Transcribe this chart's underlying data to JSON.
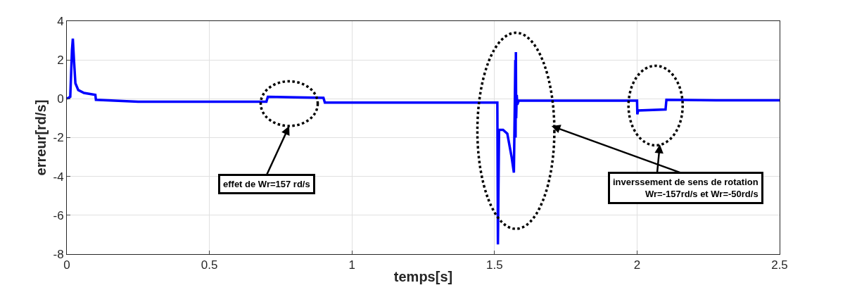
{
  "chart_data": {
    "type": "line",
    "xlabel": "temps[s]",
    "ylabel": "erreur[rd/s]",
    "x": [
      0,
      0.012,
      0.018,
      0.021,
      0.025,
      0.03,
      0.04,
      0.06,
      0.1,
      0.102,
      0.25,
      0.5,
      0.7,
      0.705,
      0.8,
      0.9,
      0.905,
      1.2,
      1.51,
      1.512,
      1.516,
      1.53,
      1.545,
      1.56,
      1.568,
      1.571,
      1.573,
      1.574,
      1.575,
      1.576,
      1.578,
      1.58,
      1.585,
      1.8,
      2.0,
      2.001,
      2.004,
      2.1,
      2.103,
      2.3,
      2.5
    ],
    "series": [
      {
        "color": "#0000ff",
        "values": [
          0,
          0.1,
          2.5,
          3.1,
          2.0,
          0.8,
          0.45,
          0.3,
          0.2,
          -0.05,
          -0.15,
          -0.15,
          -0.15,
          0.1,
          0.08,
          0.05,
          -0.2,
          -0.2,
          -0.2,
          -7.5,
          -1.6,
          -1.6,
          -1.8,
          -3.0,
          -3.8,
          -0.5,
          2.0,
          -2.0,
          2.4,
          -1.0,
          0.2,
          -0.3,
          -0.1,
          -0.1,
          -0.1,
          -0.8,
          -0.6,
          -0.55,
          -0.05,
          -0.08,
          -0.08
        ]
      }
    ],
    "xlim": [
      0,
      2.5
    ],
    "ylim": [
      -8,
      4
    ],
    "xticks": [
      0,
      0.5,
      1,
      1.5,
      2,
      2.5
    ],
    "yticks": [
      -8,
      -6,
      -4,
      -2,
      0,
      2,
      4
    ],
    "grid": true,
    "line_style": "solid",
    "annotations": [
      "effet de Wr=157 rd/s",
      "inverssement de sens de rotation\nWr=-157rd/s et Wr=-50rd/s"
    ]
  }
}
